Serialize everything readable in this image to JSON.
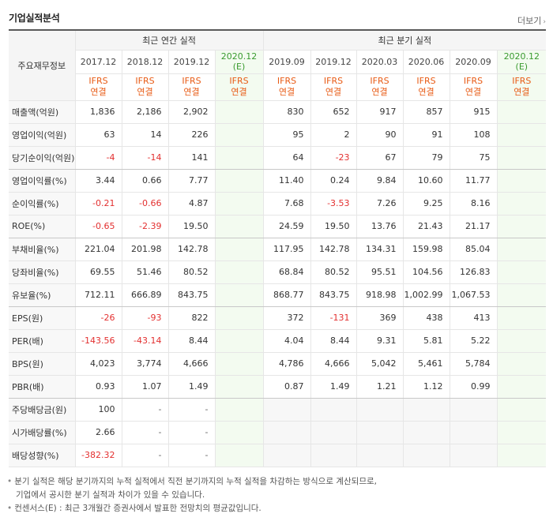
{
  "header": {
    "title": "기업실적분석",
    "more_label": "더보기",
    "more_chevron": "›"
  },
  "table": {
    "stub_label": "주요재무정보",
    "group_annual": "최근 연간 실적",
    "group_quarter": "최근 분기 실적",
    "annual_periods": [
      "2017.12",
      "2018.12",
      "2019.12",
      "2020.12 (E)"
    ],
    "quarter_periods": [
      "2019.09",
      "2019.12",
      "2020.03",
      "2020.06",
      "2020.09",
      "2020.12 (E)"
    ],
    "ifrs_line1": "IFRS",
    "ifrs_line2": "연결",
    "rows": [
      {
        "label": "매출액(억원)",
        "annual": [
          "1,836",
          "2,186",
          "2,902",
          ""
        ],
        "quarter": [
          "830",
          "652",
          "917",
          "857",
          "915",
          ""
        ]
      },
      {
        "label": "영업이익(억원)",
        "annual": [
          "63",
          "14",
          "226",
          ""
        ],
        "quarter": [
          "95",
          "2",
          "90",
          "91",
          "108",
          ""
        ]
      },
      {
        "label": "당기순이익(억원)",
        "annual": [
          "-4",
          "-14",
          "141",
          ""
        ],
        "quarter": [
          "64",
          "-23",
          "67",
          "79",
          "75",
          ""
        ]
      },
      {
        "label": "영업이익률(%)",
        "annual": [
          "3.44",
          "0.66",
          "7.77",
          ""
        ],
        "quarter": [
          "11.40",
          "0.24",
          "9.84",
          "10.60",
          "11.77",
          ""
        ]
      },
      {
        "label": "순이익률(%)",
        "annual": [
          "-0.21",
          "-0.66",
          "4.87",
          ""
        ],
        "quarter": [
          "7.68",
          "-3.53",
          "7.26",
          "9.25",
          "8.16",
          ""
        ]
      },
      {
        "label": "ROE(%)",
        "annual": [
          "-0.65",
          "-2.39",
          "19.50",
          ""
        ],
        "quarter": [
          "24.59",
          "19.50",
          "13.76",
          "21.43",
          "21.17",
          ""
        ]
      },
      {
        "label": "부채비율(%)",
        "annual": [
          "221.04",
          "201.98",
          "142.78",
          ""
        ],
        "quarter": [
          "117.95",
          "142.78",
          "134.31",
          "159.98",
          "85.04",
          ""
        ]
      },
      {
        "label": "당좌비율(%)",
        "annual": [
          "69.55",
          "51.46",
          "80.52",
          ""
        ],
        "quarter": [
          "68.84",
          "80.52",
          "95.51",
          "104.56",
          "126.83",
          ""
        ]
      },
      {
        "label": "유보율(%)",
        "annual": [
          "712.11",
          "666.89",
          "843.75",
          ""
        ],
        "quarter": [
          "868.77",
          "843.75",
          "918.98",
          "1,002.99",
          "1,067.53",
          ""
        ]
      },
      {
        "label": "EPS(원)",
        "annual": [
          "-26",
          "-93",
          "822",
          ""
        ],
        "quarter": [
          "372",
          "-131",
          "369",
          "438",
          "413",
          ""
        ]
      },
      {
        "label": "PER(배)",
        "annual": [
          "-143.56",
          "-43.14",
          "8.44",
          ""
        ],
        "quarter": [
          "4.04",
          "8.44",
          "9.31",
          "5.81",
          "5.22",
          ""
        ]
      },
      {
        "label": "BPS(원)",
        "annual": [
          "4,023",
          "3,774",
          "4,666",
          ""
        ],
        "quarter": [
          "4,786",
          "4,666",
          "5,042",
          "5,461",
          "5,784",
          ""
        ]
      },
      {
        "label": "PBR(배)",
        "annual": [
          "0.93",
          "1.07",
          "1.49",
          ""
        ],
        "quarter": [
          "0.87",
          "1.49",
          "1.21",
          "1.12",
          "0.99",
          ""
        ]
      },
      {
        "label": "주당배당금(원)",
        "annual": [
          "100",
          "-",
          "-",
          ""
        ],
        "quarter": [
          "",
          "",
          "",
          "",
          "",
          ""
        ]
      },
      {
        "label": "시가배당률(%)",
        "annual": [
          "2.66",
          "-",
          "-",
          ""
        ],
        "quarter": [
          "",
          "",
          "",
          "",
          "",
          ""
        ]
      },
      {
        "label": "배당성향(%)",
        "annual": [
          "-382.32",
          "-",
          "-",
          ""
        ],
        "quarter": [
          "",
          "",
          "",
          "",
          "",
          ""
        ]
      }
    ]
  },
  "notes": [
    "분기 실적은 해당 분기까지의 누적 실적에서 직전 분기까지의 누적 실적을 차감하는 방식으로 계산되므로,",
    "기업에서 공시한 분기 실적과 차이가 있을 수 있습니다.",
    "컨센서스(E) : 최근 3개월간 증권사에서 발표한 전망치의 평균값입니다."
  ],
  "colors": {
    "negative": "#e33030",
    "ifrs": "#e85b15",
    "estimate": "#3a9b2f"
  }
}
